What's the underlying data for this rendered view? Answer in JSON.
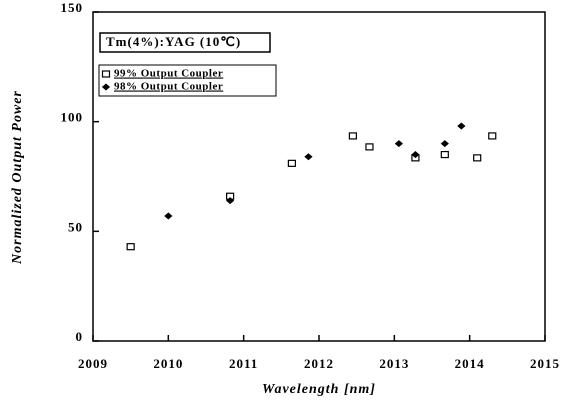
{
  "chart_data": {
    "type": "scatter",
    "annotation": "Tm(4%):YAG (10℃)",
    "x_label": "Wavelength [nm]",
    "y_label": "Normalized Output Power",
    "xlim": [
      2009,
      2015
    ],
    "xticks": [
      2009,
      2010,
      2011,
      2012,
      2013,
      2014,
      2015
    ],
    "ylim": [
      0,
      150
    ],
    "yticks": [
      0,
      50,
      100,
      150
    ],
    "legend": "upper left",
    "series": [
      {
        "name": "99% Output Coupler",
        "color": "#000000",
        "marker": "square",
        "x": [
          2009.5,
          2010.82,
          2011.64,
          2012.45,
          2012.67,
          2013.28,
          2013.67,
          2014.1,
          2014.3
        ],
        "values": [
          43,
          66,
          81,
          93.5,
          88.5,
          83.5,
          85,
          83.5,
          93.5
        ]
      },
      {
        "name": "98% Output Coupler",
        "color": "#000000",
        "marker": "diamond",
        "x": [
          2010.0,
          2010.82,
          2011.86,
          2013.06,
          2013.28,
          2013.67,
          2013.89
        ],
        "values": [
          57,
          64,
          84,
          90,
          85,
          90,
          98
        ]
      }
    ]
  }
}
